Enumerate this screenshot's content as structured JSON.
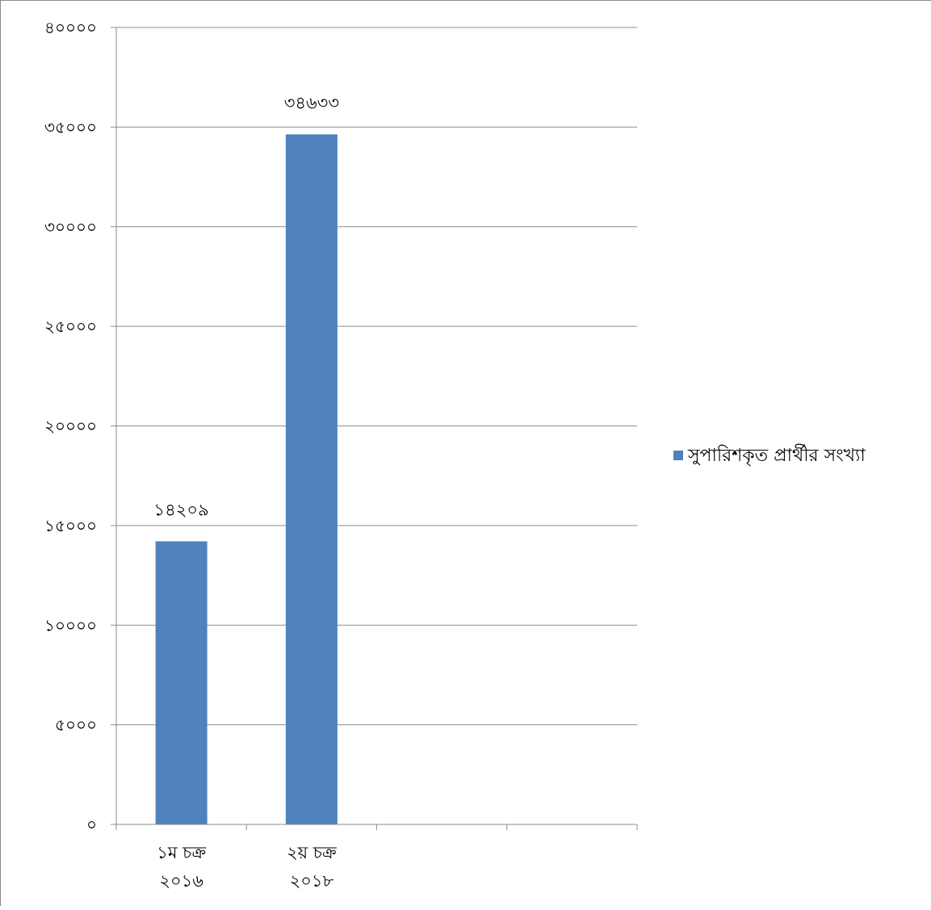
{
  "chart_data": {
    "type": "bar",
    "title": "",
    "xlabel": "",
    "ylabel": "",
    "ylim": [
      0,
      40000
    ],
    "yticks": [
      "০",
      "৫০০০",
      "১০০০০",
      "১৫০০০",
      "২০০০০",
      "২৫০০০",
      "৩০০০০",
      "৩৫০০০",
      "৪০০০০"
    ],
    "grid": true,
    "legend_position": "right",
    "slots": 4,
    "categories": [
      {
        "line1": "১ম চক্র",
        "line2": "২০১৬"
      },
      {
        "line1": "২য় চক্র",
        "line2": "২০১৮"
      }
    ],
    "series": [
      {
        "name": "সুপারিশকৃত প্রার্থীর সংখ্যা",
        "color": "#4f81bd",
        "values": [
          14209,
          34633
        ],
        "labels": [
          "১৪২০৯",
          "৩৪৬৩৩"
        ]
      }
    ]
  }
}
